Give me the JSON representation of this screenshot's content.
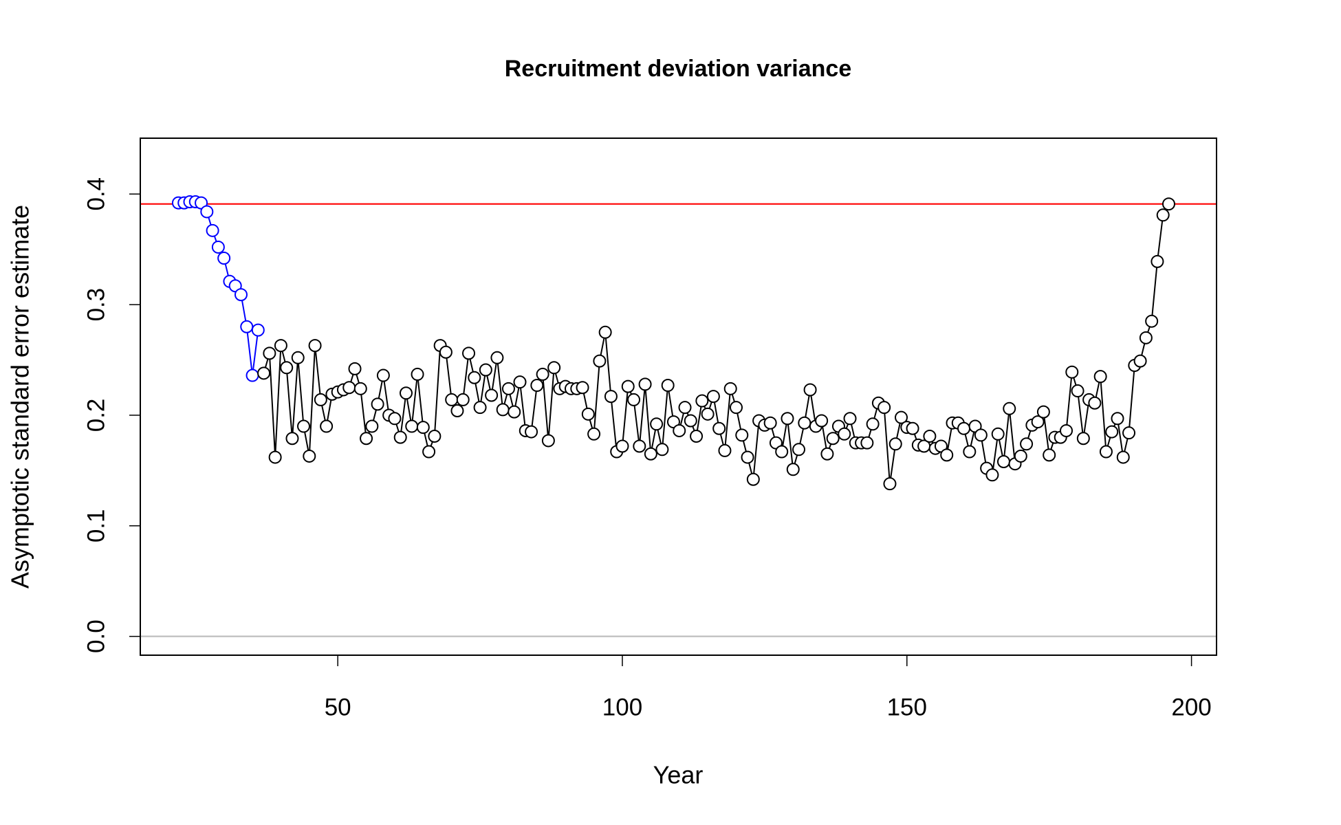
{
  "chart_data": {
    "type": "line_points",
    "title": "Recruitment deviation variance",
    "xlabel": "Year",
    "ylabel": "Asymptotic standard error estimate",
    "xlim": [
      15.3,
      204.4
    ],
    "ylim": [
      -0.017,
      0.4505
    ],
    "xticks": [
      50,
      100,
      150,
      200
    ],
    "yticks": [
      {
        "value": 0,
        "label": "0.0"
      },
      0.1,
      0.2,
      0.3,
      0.4
    ],
    "hlines": [
      {
        "value": 0.391,
        "color": "#ff0000"
      },
      {
        "value": 0,
        "color": "#bebebe"
      }
    ],
    "series": [
      {
        "color": "#0000ff",
        "x": [
          22,
          23,
          24,
          25,
          26,
          27,
          28,
          29,
          30,
          31,
          32,
          33,
          34,
          35,
          36
        ],
        "values": [
          0.392,
          0.392,
          0.393,
          0.393,
          0.392,
          0.384,
          0.367,
          0.352,
          0.342,
          0.321,
          0.317,
          0.309,
          0.28,
          0.236,
          0.277
        ]
      },
      {
        "color": "#000000",
        "x": [
          37,
          38,
          39,
          40,
          41,
          42,
          43,
          44,
          45,
          46,
          47,
          48,
          49,
          50,
          51,
          52,
          53,
          54,
          55,
          56,
          57,
          58,
          59,
          60,
          61,
          62,
          63,
          64,
          65,
          66,
          67,
          68,
          69,
          70,
          71,
          72,
          73,
          74,
          75,
          76,
          77,
          78,
          79,
          80,
          81,
          82,
          83,
          84,
          85,
          86,
          87,
          88,
          89,
          90,
          91,
          92,
          93,
          94,
          95,
          96,
          97,
          98,
          99,
          100,
          101,
          102,
          103,
          104,
          105,
          106,
          107,
          108,
          109,
          110,
          111,
          112,
          113,
          114,
          115,
          116,
          117,
          118,
          119,
          120,
          121,
          122,
          123,
          124,
          125,
          126,
          127,
          128,
          129,
          130,
          131,
          132,
          133,
          134,
          135,
          136,
          137,
          138,
          139,
          140,
          141,
          142,
          143,
          144,
          145,
          146,
          147,
          148,
          149,
          150,
          151,
          152,
          153,
          154,
          155,
          156,
          157,
          158,
          159,
          160,
          161,
          162,
          163,
          164,
          165,
          166,
          167,
          168,
          169,
          170,
          171,
          172,
          173,
          174,
          175,
          176,
          177,
          178,
          179,
          180,
          181,
          182,
          183,
          184,
          185,
          186,
          187,
          188,
          189,
          190,
          191,
          192,
          193,
          194,
          195,
          196
        ],
        "values": [
          0.238,
          0.256,
          0.162,
          0.263,
          0.243,
          0.179,
          0.252,
          0.19,
          0.163,
          0.263,
          0.214,
          0.19,
          0.219,
          0.221,
          0.223,
          0.225,
          0.242,
          0.224,
          0.179,
          0.19,
          0.21,
          0.236,
          0.2,
          0.197,
          0.18,
          0.22,
          0.19,
          0.237,
          0.189,
          0.167,
          0.181,
          0.263,
          0.257,
          0.214,
          0.204,
          0.214,
          0.256,
          0.234,
          0.207,
          0.241,
          0.218,
          0.252,
          0.205,
          0.224,
          0.203,
          0.23,
          0.186,
          0.185,
          0.227,
          0.237,
          0.177,
          0.243,
          0.224,
          0.226,
          0.224,
          0.224,
          0.225,
          0.201,
          0.183,
          0.249,
          0.275,
          0.217,
          0.167,
          0.172,
          0.226,
          0.214,
          0.172,
          0.228,
          0.165,
          0.192,
          0.169,
          0.227,
          0.194,
          0.186,
          0.207,
          0.195,
          0.181,
          0.213,
          0.201,
          0.217,
          0.188,
          0.168,
          0.224,
          0.207,
          0.182,
          0.162,
          0.142,
          0.195,
          0.191,
          0.193,
          0.175,
          0.167,
          0.197,
          0.151,
          0.169,
          0.193,
          0.223,
          0.19,
          0.195,
          0.165,
          0.179,
          0.19,
          0.183,
          0.197,
          0.175,
          0.175,
          0.175,
          0.192,
          0.211,
          0.207,
          0.138,
          0.174,
          0.198,
          0.189,
          0.188,
          0.173,
          0.172,
          0.181,
          0.17,
          0.172,
          0.164,
          0.193,
          0.193,
          0.188,
          0.167,
          0.19,
          0.182,
          0.152,
          0.146,
          0.183,
          0.158,
          0.206,
          0.156,
          0.163,
          0.174,
          0.191,
          0.194,
          0.203,
          0.164,
          0.18,
          0.18,
          0.186,
          0.239,
          0.222,
          0.179,
          0.214,
          0.211,
          0.235,
          0.167,
          0.185,
          0.197,
          0.162,
          0.184,
          0.245,
          0.249,
          0.27,
          0.285,
          0.339,
          0.381,
          0.391
        ]
      }
    ]
  }
}
